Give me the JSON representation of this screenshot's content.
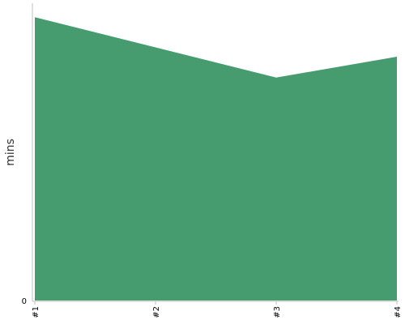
{
  "chart_data": {
    "type": "area",
    "categories": [
      "#1",
      "#2",
      "#3",
      "#4"
    ],
    "series": [
      {
        "values": [
          61,
          54.5,
          48,
          52.5
        ]
      }
    ],
    "title": "",
    "xlabel": "",
    "ylabel": "mins",
    "ylim": [
      0,
      64
    ],
    "y_ticks": [
      "0"
    ],
    "grid": false,
    "legend": "none",
    "colors": {
      "area": "#469c6e",
      "axis": "#c0c0c0"
    }
  }
}
